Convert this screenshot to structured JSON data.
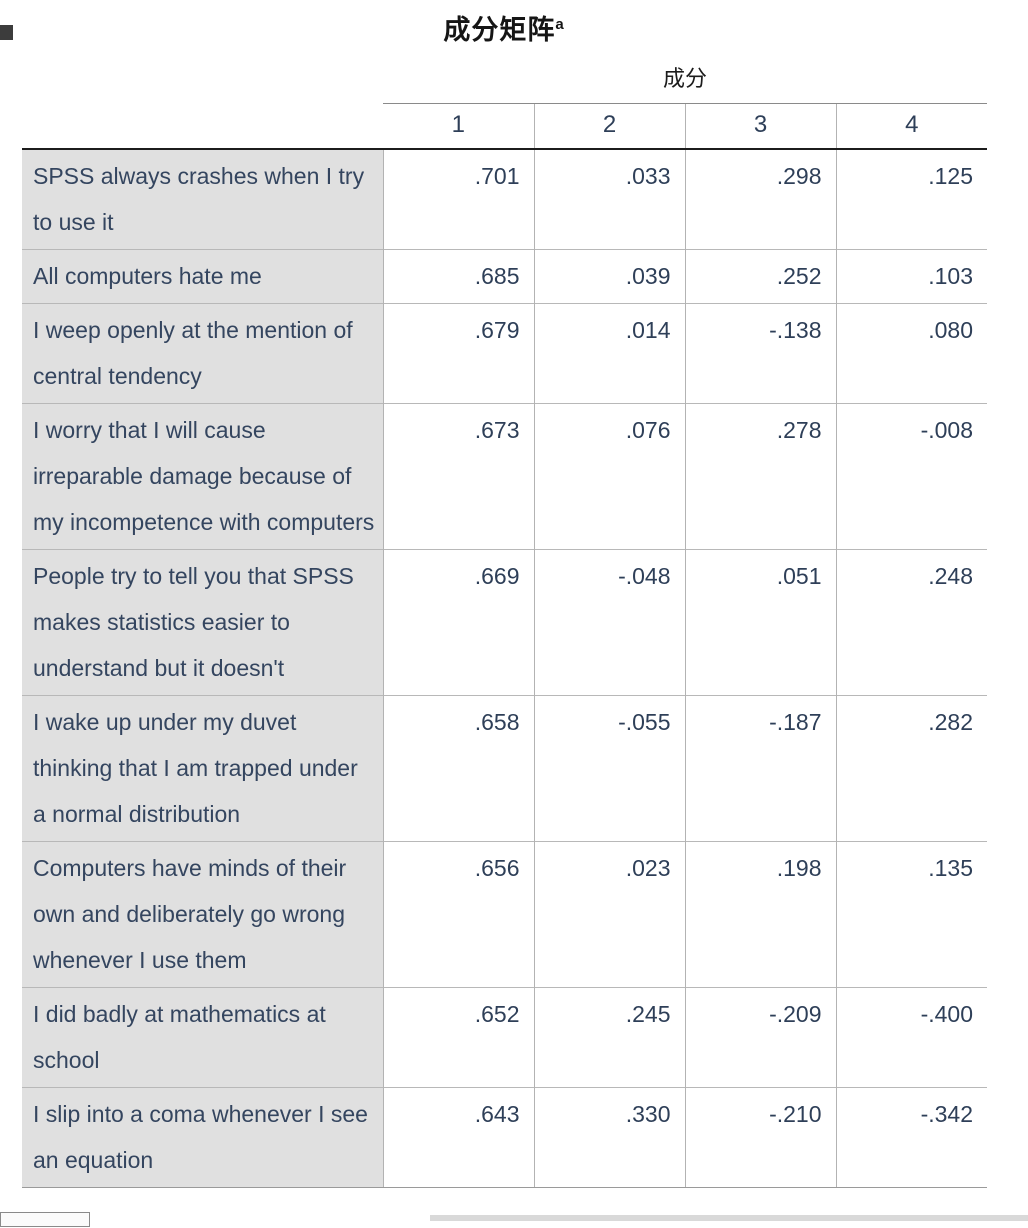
{
  "page": {
    "title": "成分矩阵",
    "title_superscript": "a"
  },
  "colors": {
    "row_label_background": "#e0e0e0",
    "table_text": "#2e3f58",
    "grid_line": "#b3b3b3",
    "header_rule": "#1c1c1c"
  },
  "table": {
    "group_header": "成分",
    "columns": [
      "1",
      "2",
      "3",
      "4"
    ],
    "rows": [
      {
        "label": "SPSS always crashes when I try to use it",
        "values": [
          ".701",
          ".033",
          ".298",
          ".125"
        ]
      },
      {
        "label": "All computers hate me",
        "values": [
          ".685",
          ".039",
          ".252",
          ".103"
        ]
      },
      {
        "label": "I weep openly at the mention of central tendency",
        "values": [
          ".679",
          ".014",
          "-.138",
          ".080"
        ]
      },
      {
        "label": "I worry that I will cause irreparable damage because of my incompetence with computers",
        "values": [
          ".673",
          ".076",
          ".278",
          "-.008"
        ]
      },
      {
        "label": "People try to tell you that SPSS makes statistics easier to understand but it doesn't",
        "values": [
          ".669",
          "-.048",
          ".051",
          ".248"
        ]
      },
      {
        "label": "I wake up under my duvet thinking that I am trapped under a normal distribution",
        "values": [
          ".658",
          "-.055",
          "-.187",
          ".282"
        ]
      },
      {
        "label": "Computers have minds of their own and deliberately go wrong whenever I use them",
        "values": [
          ".656",
          ".023",
          ".198",
          ".135"
        ]
      },
      {
        "label": "I did badly at mathematics at school",
        "values": [
          ".652",
          ".245",
          "-.209",
          "-.400"
        ]
      },
      {
        "label": "I slip into a coma whenever I see an equation",
        "values": [
          ".643",
          ".330",
          "-.210",
          "-.342"
        ]
      }
    ]
  }
}
